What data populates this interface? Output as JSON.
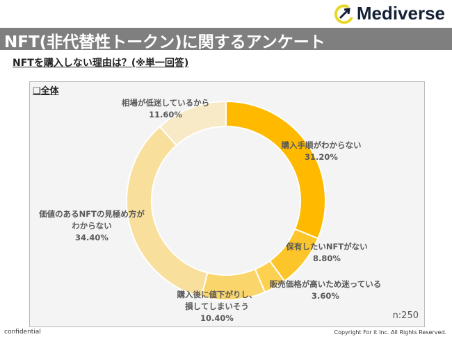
{
  "brand": {
    "name": "Mediverse"
  },
  "header": {
    "title": "NFT(非代替性トークン)に関するアンケート"
  },
  "question": "NFTを購入しない理由は？(※単一回答)",
  "box_label": "❑全体",
  "sample_size": "n:250",
  "footer": {
    "left": "confidential",
    "right": "Copyright For it Inc. All Rights Reserved."
  },
  "chart_data": {
    "type": "pie",
    "donut": true,
    "categories": [
      "購入手順がわからない",
      "保有したいNFTがない",
      "販売価格が高いため迷っている",
      "購入後に値下がりし、損してしまいそう",
      "価値のあるNFTの見極め方がわからない",
      "相場が低迷しているから"
    ],
    "label_lines": [
      [
        "購入手順がわからない"
      ],
      [
        "保有したいNFTがない"
      ],
      [
        "販売価格が高いため迷っている"
      ],
      [
        "購入後に値下がりし、",
        "損してしまいそう"
      ],
      [
        "価値のあるNFTの見極め方が",
        "わからない"
      ],
      [
        "相場が低迷しているから"
      ]
    ],
    "values": [
      31.2,
      8.8,
      3.6,
      10.4,
      34.4,
      11.6
    ],
    "value_labels": [
      "31.20%",
      "8.80%",
      "3.60%",
      "10.40%",
      "34.40%",
      "11.60%"
    ],
    "colors": [
      "#FFBA00",
      "#FCC62B",
      "#FDD050",
      "#FAD56C",
      "#F9DF9C",
      "#F8EAC6"
    ]
  }
}
